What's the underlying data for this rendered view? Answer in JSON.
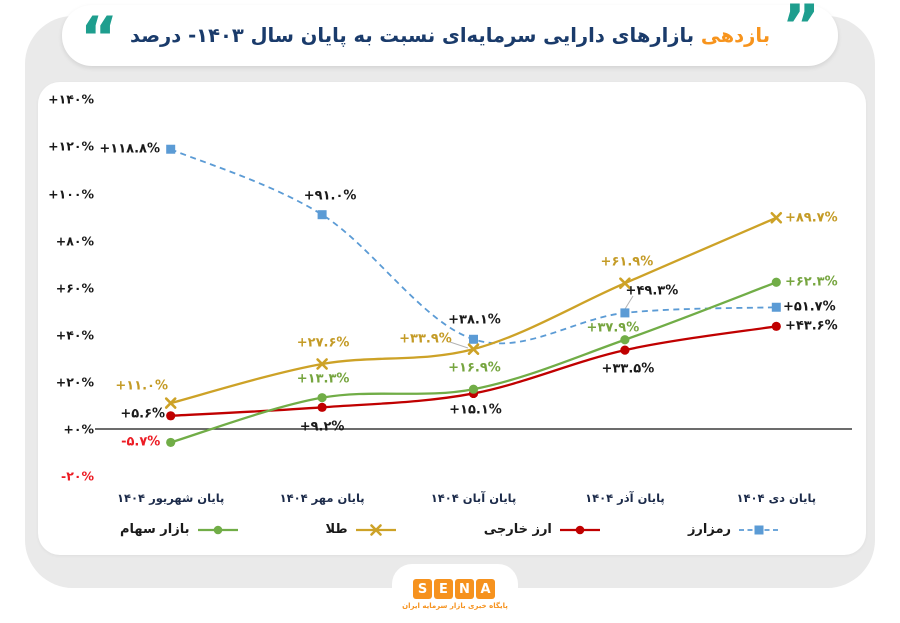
{
  "title": {
    "highlight": "بازدهی",
    "rest": " بازارهای دارایی سرمایه‌ای نسبت به پایان سال ۱۴۰۳- درصد",
    "open_quote": "“",
    "close_quote": "”"
  },
  "colors": {
    "teal_quote": "#1e9e8e",
    "title_navy": "#1a3b6b",
    "title_orange": "#f7941d",
    "background_gray": "#eaeaea",
    "axis_line": "#3c3c3c",
    "negative_red": "#ec1c24",
    "logo_orange": "#f6921e"
  },
  "chart_data": {
    "type": "line",
    "title": "بازدهی بازارهای دارایی سرمایه‌ای نسبت به پایان سال ۱۴۰۳- درصد",
    "categories": [
      "پایان شهریور ۱۴۰۴",
      "پایان مهر ۱۴۰۴",
      "پایان آبان ۱۴۰۴",
      "پایان آذر ۱۴۰۴",
      "پایان دی ۱۴۰۴"
    ],
    "ylim": [
      -20,
      140
    ],
    "grid": false,
    "legend_position": "bottom",
    "y_ticks": [
      {
        "label": "+۱۴۰%",
        "value": 140,
        "negative": false
      },
      {
        "label": "+۱۲۰%",
        "value": 120,
        "negative": false
      },
      {
        "label": "+۱۰۰%",
        "value": 100,
        "negative": false
      },
      {
        "label": "+۸۰%",
        "value": 80,
        "negative": false
      },
      {
        "label": "+۶۰%",
        "value": 60,
        "negative": false
      },
      {
        "label": "+۴۰%",
        "value": 40,
        "negative": false
      },
      {
        "label": "+۲۰%",
        "value": 20,
        "negative": false
      },
      {
        "label": "+۰%",
        "value": 0,
        "negative": false
      },
      {
        "label": "-۲۰%",
        "value": -20,
        "negative": true
      }
    ],
    "series": [
      {
        "name": "بازار سهام",
        "color": "#71ad47",
        "marker": "circle",
        "dashed": false,
        "values": [
          -5.7,
          13.3,
          16.9,
          37.9,
          62.3
        ],
        "labels": [
          "-۵.۷%",
          "+۱۳.۳%",
          "+۱۶.۹%",
          "+۳۷.۹%",
          "+۶۲.۳%"
        ],
        "label_colors": [
          "#ec1c24",
          "#76a53f",
          "#76a53f",
          "#76a53f",
          "#76a53f"
        ]
      },
      {
        "name": "طلا",
        "color": "#cda227",
        "marker": "x",
        "dashed": false,
        "values": [
          11.0,
          27.6,
          33.9,
          61.9,
          89.7
        ],
        "labels": [
          "+۱۱.۰%",
          "+۲۷.۶%",
          "+۳۳.۹%",
          "+۶۱.۹%",
          "+۸۹.۷%"
        ],
        "label_colors": [
          "#c49b26",
          "#c49b26",
          "#c49b26",
          "#c49b26",
          "#c49b26"
        ]
      },
      {
        "name": "ارز خارجی",
        "color": "#c00000",
        "marker": "circle",
        "dashed": false,
        "values": [
          5.6,
          9.2,
          15.1,
          33.5,
          43.6
        ],
        "labels": [
          "+۵.۶%",
          "+۹.۲%",
          "+۱۵.۱%",
          "+۳۳.۵%",
          "+۴۳.۶%"
        ],
        "label_colors": [
          "#1a1a1a",
          "#1a1a1a",
          "#1a1a1a",
          "#1a1a1a",
          "#1a1a1a"
        ]
      },
      {
        "name": "رمزارز",
        "color": "#5b9bd5",
        "marker": "square",
        "dashed": true,
        "values": [
          118.8,
          91.0,
          38.1,
          49.3,
          51.7
        ],
        "labels": [
          "+۱۱۸.۸%",
          "+۹۱.۰%",
          "+۳۸.۱%",
          "+۴۹.۳%",
          "+۵۱.۷%"
        ],
        "label_colors": [
          "#1a1a1a",
          "#1a1a1a",
          "#1a1a1a",
          "#1a1a1a",
          "#1a1a1a"
        ]
      }
    ]
  },
  "footer": {
    "logo_letters": [
      "S",
      "E",
      "N",
      "A"
    ],
    "tagline": "پایگاه خبری بازار سرمایه ایران"
  }
}
